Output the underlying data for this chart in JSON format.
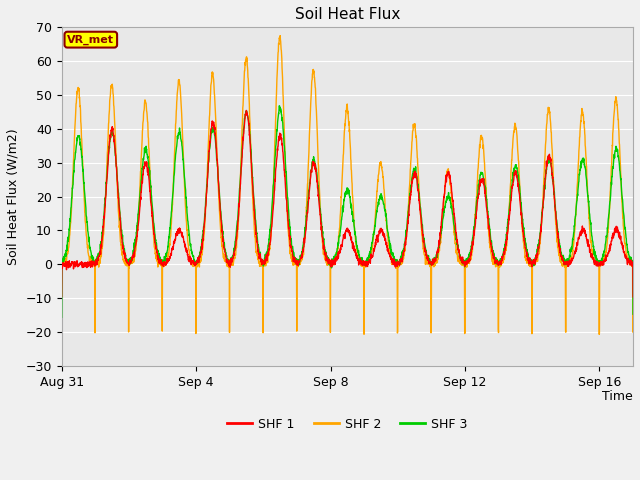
{
  "title": "Soil Heat Flux",
  "ylabel": "Soil Heat Flux (W/m2)",
  "xlabel": "Time",
  "ylim": [
    -30,
    70
  ],
  "bg_color": "#e8e8e8",
  "fig_color": "#f0f0f0",
  "grid_color": "white",
  "shf1_color": "#ff0000",
  "shf2_color": "#ffa500",
  "shf3_color": "#00cc00",
  "annotation_text": "VR_met",
  "annotation_color": "#8b0000",
  "annotation_bg": "#ffff00",
  "xtick_labels": [
    "Aug 31",
    "Sep 4",
    "Sep 8",
    "Sep 12",
    "Sep 16"
  ],
  "xtick_positions": [
    0,
    4,
    8,
    12,
    16
  ],
  "legend_labels": [
    "SHF 1",
    "SHF 2",
    "SHF 3"
  ],
  "shf2_peaks": [
    52,
    53,
    48,
    54,
    56,
    61,
    67,
    57,
    46,
    30,
    41,
    28,
    38,
    41,
    46,
    45,
    49
  ],
  "shf1_peaks": [
    0,
    40,
    30,
    10,
    42,
    45,
    38,
    30,
    10,
    10,
    27,
    27,
    25,
    27,
    32,
    10,
    10
  ],
  "shf3_peaks": [
    38,
    39,
    34,
    39,
    40,
    45,
    46,
    31,
    22,
    20,
    28,
    20,
    27,
    29,
    31,
    31,
    34
  ],
  "shf1_night": -10,
  "shf2_night": -20,
  "shf3_night": -15
}
